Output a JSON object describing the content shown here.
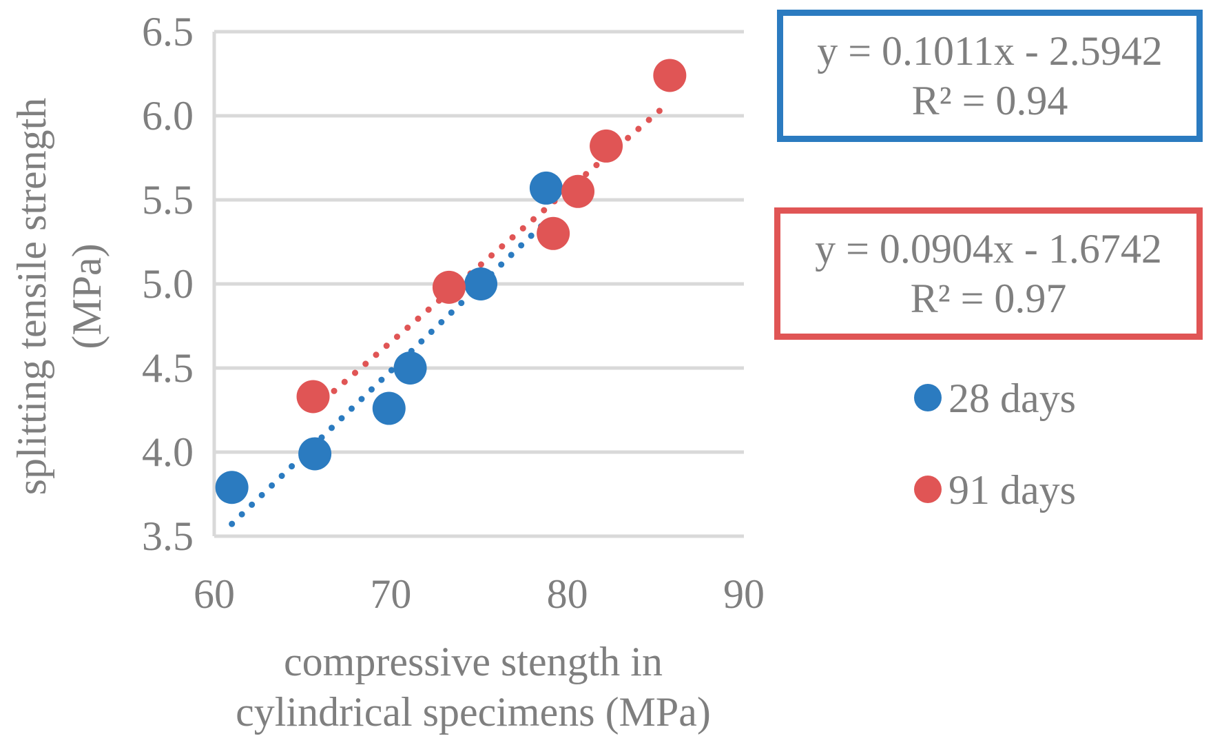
{
  "chart_data": {
    "type": "scatter",
    "title": "",
    "xlabel": [
      "compressive stength in",
      "cylindrical specimens (MPa)"
    ],
    "ylabel": [
      "splitting tensile strength",
      "(MPa)"
    ],
    "xlim": [
      60,
      90
    ],
    "ylim": [
      3.5,
      6.5
    ],
    "x_ticks": [
      60,
      70,
      80,
      90
    ],
    "x_tick_labels": [
      "60",
      "70",
      "80",
      "90"
    ],
    "y_ticks": [
      3.5,
      4.0,
      4.5,
      5.0,
      5.5,
      6.0,
      6.5
    ],
    "y_tick_labels": [
      "3.5",
      "4.0",
      "4.5",
      "5.0",
      "5.5",
      "6.0",
      "6.5"
    ],
    "grid": "horizontal",
    "legend_position": "right",
    "series": [
      {
        "name": "28 days",
        "color": "#2b7bc0",
        "points": [
          {
            "x": 61.0,
            "y": 3.79
          },
          {
            "x": 65.7,
            "y": 3.99
          },
          {
            "x": 69.9,
            "y": 4.26
          },
          {
            "x": 71.1,
            "y": 4.5
          },
          {
            "x": 75.1,
            "y": 5.0
          },
          {
            "x": 78.8,
            "y": 5.57
          }
        ],
        "trendline": {
          "slope": 0.1011,
          "intercept": -2.5942,
          "x_range": [
            61.0,
            78.8
          ]
        },
        "equation": "y = 0.1011x - 2.5942",
        "r2": "R² = 0.94"
      },
      {
        "name": "91 days",
        "color": "#e05555",
        "points": [
          {
            "x": 65.6,
            "y": 4.33
          },
          {
            "x": 73.3,
            "y": 4.98
          },
          {
            "x": 79.2,
            "y": 5.3
          },
          {
            "x": 80.6,
            "y": 5.55
          },
          {
            "x": 82.2,
            "y": 5.82
          },
          {
            "x": 85.8,
            "y": 6.24
          }
        ],
        "trendline": {
          "slope": 0.0904,
          "intercept": -1.6742,
          "x_range": [
            65.6,
            85.8
          ]
        },
        "equation": "y = 0.0904x - 1.6742",
        "r2": "R² = 0.97"
      }
    ]
  }
}
